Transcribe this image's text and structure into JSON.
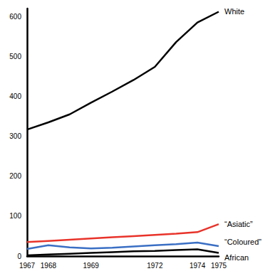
{
  "chart_data": {
    "type": "line",
    "categories": [
      "1967",
      "1968",
      null,
      "1969",
      null,
      null,
      "1972",
      null,
      "1974",
      "1975"
    ],
    "series": [
      {
        "name": "White",
        "color": "#000000",
        "values": [
          317,
          335,
          355,
          384,
          412,
          441,
          474,
          536,
          585,
          612
        ]
      },
      {
        "name": "“Asiatic”",
        "color": "#e8332a",
        "values": [
          35,
          38,
          41,
          44,
          47,
          50,
          53,
          56,
          60,
          80
        ]
      },
      {
        "name": "“Coloured”",
        "color": "#3a6fc4",
        "values": [
          18,
          27,
          22,
          19,
          21,
          24,
          27,
          30,
          34,
          25
        ]
      },
      {
        "name": "African",
        "color": "#000000",
        "values": [
          2,
          4,
          6,
          8,
          10,
          12,
          13,
          15,
          17,
          8
        ]
      }
    ],
    "ylim": [
      0,
      620
    ],
    "yticks": [
      0,
      100,
      200,
      300,
      400,
      500,
      600
    ],
    "grid": false,
    "marker": "none"
  }
}
